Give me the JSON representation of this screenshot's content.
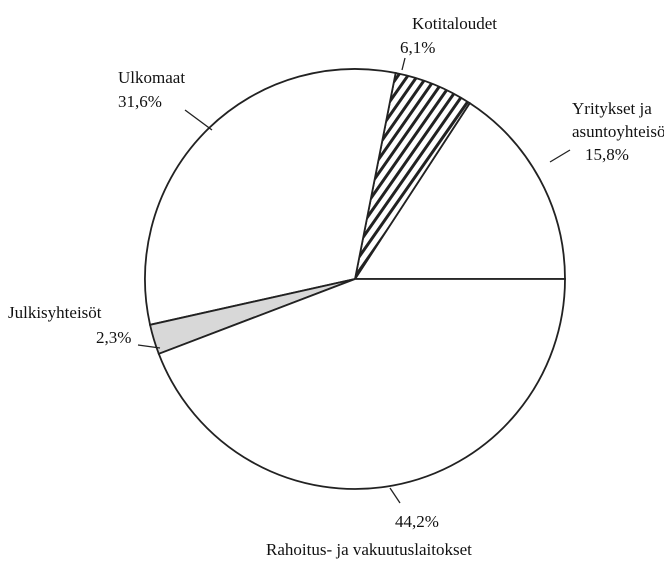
{
  "chart_data": {
    "type": "pie",
    "categories": [
      "Yritykset ja asuntoyhteisöt",
      "Kotitaloudet",
      "Ulkomaat",
      "Julkisyhteisöt",
      "Rahoitus- ja vakuutuslaitokset"
    ],
    "values": [
      15.8,
      6.1,
      31.6,
      2.3,
      44.2
    ],
    "value_labels": [
      "15,8%",
      "6,1%",
      "31,6%",
      "2,3%",
      "44,2%"
    ],
    "colors": [
      "#ffffff",
      "#3a3a3a",
      "#ffffff",
      "#d8d8d8",
      "#ffffff"
    ]
  }
}
